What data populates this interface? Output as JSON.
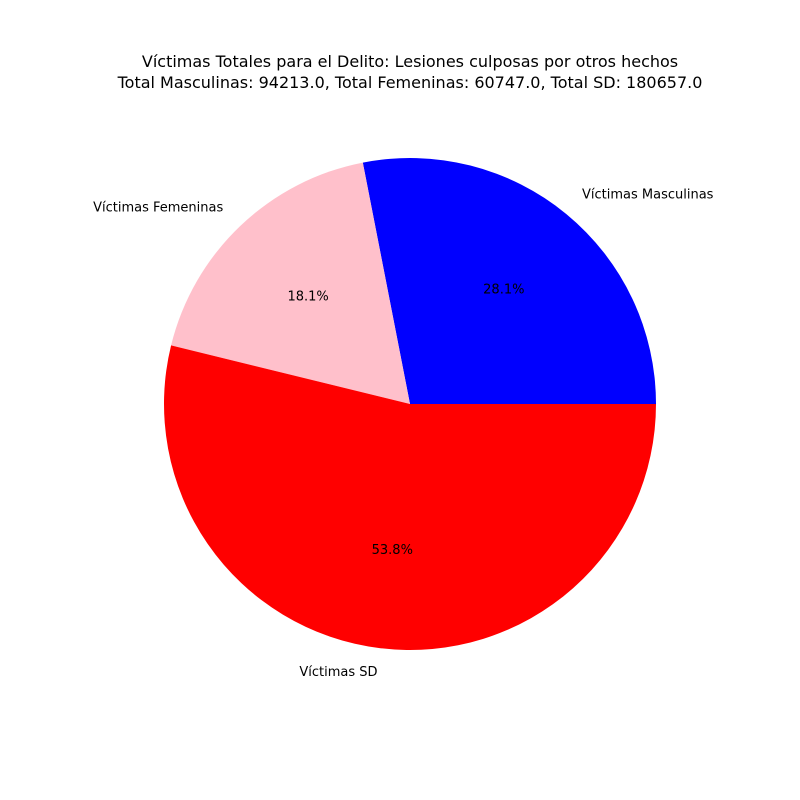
{
  "chart_data": {
    "type": "pie",
    "title": "Víctimas Totales para el Delito: Lesiones culposas por otros hechos",
    "subtitle": "Total Masculinas: 94213.0, Total Femeninas: 60747.0, Total SD: 180657.0",
    "slices": [
      {
        "label": "Víctimas Masculinas",
        "value": 94213.0,
        "percent_label": "28.1%",
        "color": "#0000ff"
      },
      {
        "label": "Víctimas Femeninas",
        "value": 60747.0,
        "percent_label": "18.1%",
        "color": "#ffc0cb"
      },
      {
        "label": "Víctimas SD",
        "value": 180657.0,
        "percent_label": "53.8%",
        "color": "#ff0000"
      }
    ],
    "start_angle_deg": 0,
    "direction": "counterclockwise"
  }
}
